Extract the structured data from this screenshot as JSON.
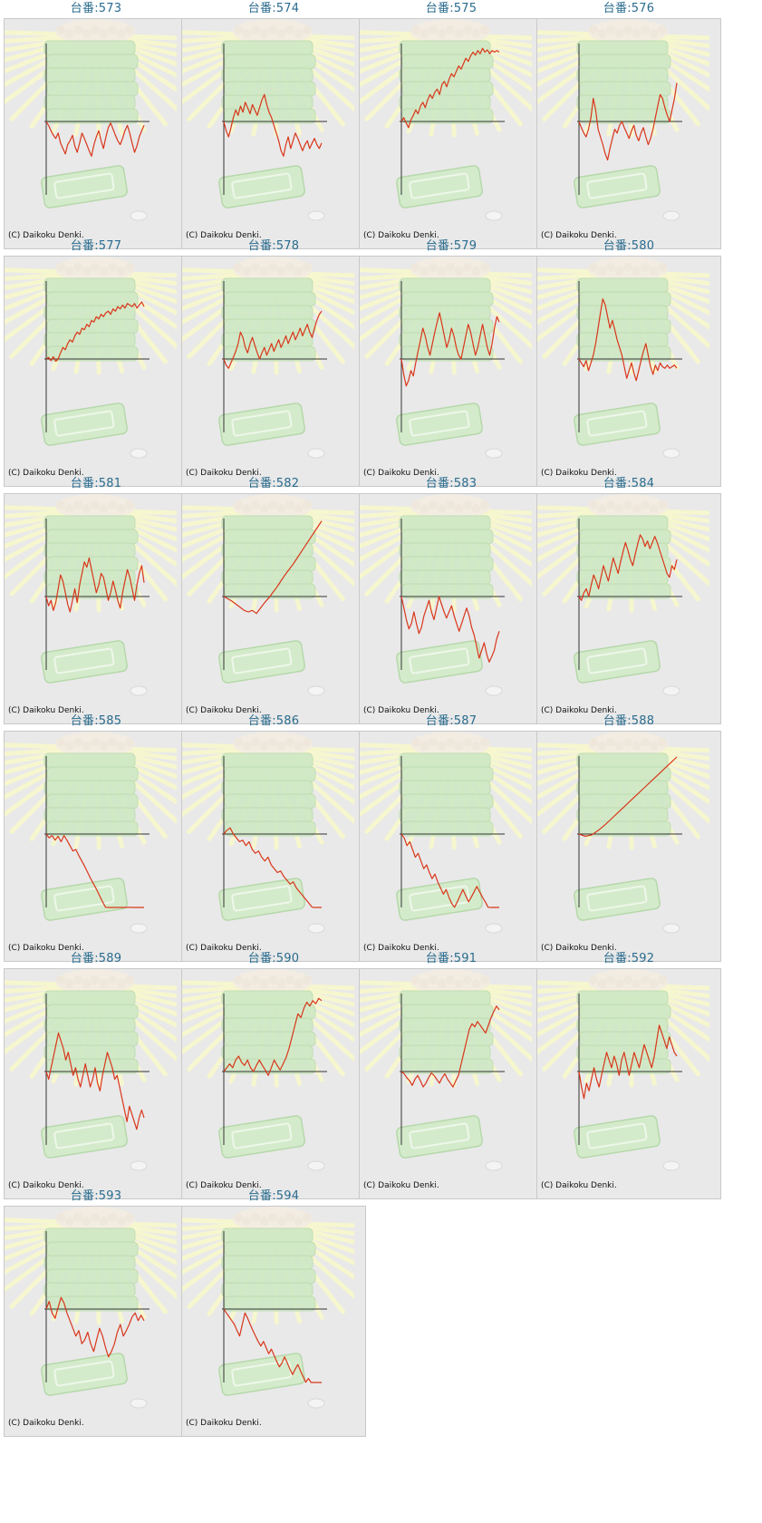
{
  "page": {
    "copyright": "(C) Daikoku Denki.",
    "colors": {
      "title": "#2a6c8e",
      "line": "#d9361a",
      "axis": "#333333",
      "card_bg": "#e9e9e9",
      "bg_art_green": "#cfe8c5",
      "bg_art_rays": "#f6f6cf"
    },
    "background_art": "pachinko-machine-illustration"
  },
  "chart_data": [
    {
      "type": "line",
      "title": "台番:573",
      "y": [
        0,
        -5,
        -12,
        -18,
        -22,
        -15,
        -28,
        -35,
        -42,
        -30,
        -25,
        -18,
        -32,
        -40,
        -28,
        -15,
        -22,
        -30,
        -38,
        -45,
        -30,
        -20,
        -12,
        -25,
        -35,
        -20,
        -8,
        -2,
        -10,
        -18,
        -25,
        -30,
        -22,
        -12,
        -5,
        -15,
        -28,
        -40,
        -32,
        -20,
        -12,
        -5
      ]
    },
    {
      "type": "line",
      "title": "台番:574",
      "y": [
        0,
        -12,
        -20,
        -8,
        5,
        15,
        8,
        20,
        12,
        25,
        18,
        10,
        22,
        15,
        8,
        18,
        28,
        35,
        22,
        12,
        5,
        -5,
        -15,
        -25,
        -38,
        -45,
        -30,
        -20,
        -35,
        -25,
        -15,
        -22,
        -30,
        -38,
        -30,
        -25,
        -35,
        -28,
        -22,
        -30,
        -35,
        -28
      ]
    },
    {
      "type": "line",
      "title": "台番:575",
      "y": [
        0,
        5,
        -2,
        -8,
        2,
        8,
        15,
        10,
        20,
        25,
        18,
        28,
        35,
        30,
        38,
        42,
        35,
        48,
        52,
        45,
        55,
        62,
        58,
        65,
        72,
        68,
        75,
        82,
        78,
        85,
        90,
        86,
        92,
        88,
        95,
        90,
        93,
        88,
        92,
        90,
        92,
        90
      ]
    },
    {
      "type": "line",
      "title": "台番:576",
      "y": [
        0,
        -8,
        -15,
        -20,
        -10,
        5,
        30,
        15,
        -10,
        -20,
        -30,
        -42,
        -50,
        -35,
        -22,
        -10,
        -15,
        -5,
        0,
        -8,
        -15,
        -22,
        -12,
        -5,
        -18,
        -25,
        -15,
        -8,
        -20,
        -30,
        -22,
        -10,
        5,
        20,
        35,
        30,
        18,
        8,
        0,
        15,
        30,
        50
      ]
    },
    {
      "type": "line",
      "title": "台番:577",
      "y": [
        0,
        2,
        -2,
        3,
        -3,
        0,
        8,
        15,
        12,
        20,
        25,
        22,
        30,
        35,
        32,
        40,
        38,
        45,
        42,
        50,
        48,
        55,
        52,
        58,
        55,
        60,
        62,
        58,
        65,
        62,
        68,
        65,
        70,
        66,
        72,
        70,
        68,
        72,
        66,
        70,
        74,
        68
      ]
    },
    {
      "type": "line",
      "title": "台番:578",
      "y": [
        0,
        -8,
        -12,
        -5,
        2,
        10,
        20,
        35,
        28,
        15,
        8,
        20,
        28,
        18,
        8,
        0,
        8,
        15,
        5,
        12,
        20,
        10,
        18,
        25,
        15,
        22,
        30,
        20,
        28,
        35,
        25,
        32,
        40,
        30,
        38,
        45,
        35,
        28,
        40,
        50,
        58,
        62
      ]
    },
    {
      "type": "line",
      "title": "台番:579",
      "y": [
        0,
        -20,
        -35,
        -28,
        -15,
        -22,
        -5,
        10,
        25,
        40,
        30,
        15,
        5,
        20,
        35,
        48,
        60,
        45,
        30,
        15,
        25,
        40,
        30,
        15,
        5,
        0,
        15,
        30,
        45,
        35,
        20,
        5,
        15,
        30,
        45,
        30,
        15,
        5,
        20,
        40,
        55,
        48
      ]
    },
    {
      "type": "line",
      "title": "台番:580",
      "y": [
        0,
        -5,
        -10,
        -2,
        -15,
        -5,
        5,
        20,
        40,
        60,
        78,
        70,
        55,
        40,
        50,
        38,
        25,
        15,
        5,
        -10,
        -25,
        -15,
        -5,
        -18,
        -28,
        -15,
        -2,
        10,
        20,
        5,
        -10,
        -20,
        -8,
        -15,
        -5,
        -10,
        -12,
        -8,
        -12,
        -10,
        -8,
        -12
      ]
    },
    {
      "type": "line",
      "title": "台番:581",
      "y": [
        0,
        -12,
        -5,
        -18,
        -8,
        10,
        28,
        20,
        5,
        -10,
        -20,
        -5,
        10,
        -8,
        15,
        30,
        45,
        38,
        50,
        35,
        20,
        5,
        15,
        30,
        25,
        10,
        -5,
        5,
        20,
        8,
        -5,
        -15,
        5,
        20,
        35,
        25,
        10,
        -5,
        15,
        30,
        40,
        18
      ]
    },
    {
      "type": "line",
      "title": "台番:582",
      "y": [
        0,
        -3,
        -6,
        -10,
        -14,
        -18,
        -20,
        -18,
        -22,
        -15,
        -8,
        -2,
        5,
        12,
        20,
        28,
        35,
        42,
        50,
        58,
        66,
        74,
        82,
        90,
        98
      ]
    },
    {
      "type": "line",
      "title": "台番:583",
      "y": [
        0,
        -15,
        -30,
        -42,
        -35,
        -20,
        -35,
        -48,
        -40,
        -25,
        -15,
        -5,
        -20,
        -30,
        -15,
        0,
        -10,
        -20,
        -28,
        -20,
        -12,
        -25,
        -35,
        -45,
        -35,
        -25,
        -15,
        -25,
        -40,
        -50,
        -65,
        -80,
        -70,
        -60,
        -75,
        -85,
        -78,
        -70,
        -55,
        -45
      ]
    },
    {
      "type": "line",
      "title": "台番:584",
      "y": [
        0,
        -5,
        5,
        10,
        0,
        15,
        28,
        20,
        10,
        25,
        40,
        30,
        20,
        35,
        50,
        40,
        30,
        45,
        58,
        70,
        60,
        48,
        40,
        55,
        68,
        80,
        75,
        65,
        72,
        62,
        70,
        78,
        70,
        60,
        50,
        40,
        30,
        25,
        40,
        35,
        48
      ]
    },
    {
      "type": "line",
      "title": "台番:585",
      "y": [
        0,
        -5,
        -2,
        -8,
        -3,
        -10,
        -2,
        -8,
        -15,
        -22,
        -20,
        -28,
        -35,
        -42,
        -50,
        -58,
        -65,
        -72,
        -80,
        -88,
        -95,
        -102,
        -110,
        -118,
        -125,
        -120,
        -110,
        -102,
        -95,
        -100,
        -108,
        -100,
        -105,
        -108
      ]
    },
    {
      "type": "line",
      "title": "台番:586",
      "y": [
        0,
        5,
        8,
        0,
        -5,
        -10,
        -8,
        -15,
        -10,
        -20,
        -25,
        -22,
        -30,
        -35,
        -30,
        -40,
        -45,
        -50,
        -48,
        -55,
        -60,
        -65,
        -62,
        -70,
        -75,
        -80,
        -85,
        -90,
        -95,
        -100,
        -108,
        -115
      ]
    },
    {
      "type": "line",
      "title": "台番:587",
      "y": [
        0,
        -5,
        -15,
        -10,
        -20,
        -30,
        -25,
        -35,
        -45,
        -40,
        -50,
        -58,
        -52,
        -62,
        -70,
        -78,
        -72,
        -82,
        -90,
        -95,
        -88,
        -80,
        -72,
        -80,
        -88,
        -82,
        -75,
        -68,
        -75,
        -82,
        -88,
        -95,
        -100,
        -108,
        -102,
        -110
      ]
    },
    {
      "type": "line",
      "title": "台番:588",
      "y": [
        0,
        -3,
        -1,
        5,
        12,
        20,
        28,
        36,
        44,
        52,
        60,
        68,
        76,
        84,
        92,
        100
      ]
    },
    {
      "type": "line",
      "title": "台番:589",
      "y": [
        0,
        -10,
        5,
        20,
        35,
        50,
        40,
        30,
        15,
        25,
        10,
        -5,
        5,
        -10,
        -20,
        -5,
        10,
        -5,
        -20,
        -10,
        5,
        -15,
        -25,
        -5,
        10,
        25,
        15,
        5,
        -10,
        -5,
        -20,
        -35,
        -50,
        -65,
        -45,
        -55,
        -65,
        -75,
        -60,
        -50,
        -60
      ]
    },
    {
      "type": "line",
      "title": "台番:590",
      "y": [
        0,
        5,
        10,
        5,
        15,
        20,
        12,
        8,
        15,
        5,
        0,
        8,
        15,
        8,
        2,
        -5,
        5,
        15,
        8,
        2,
        10,
        18,
        30,
        45,
        60,
        75,
        70,
        82,
        90,
        85,
        92,
        88,
        95,
        92
      ]
    },
    {
      "type": "line",
      "title": "台番:591",
      "y": [
        0,
        -3,
        -8,
        -12,
        -18,
        -10,
        -5,
        -12,
        -20,
        -15,
        -8,
        -2,
        -5,
        -10,
        -15,
        -8,
        -3,
        -10,
        -15,
        -20,
        -12,
        -5,
        10,
        25,
        40,
        55,
        62,
        58,
        65,
        60,
        55,
        50,
        60,
        70,
        78,
        85,
        80
      ]
    },
    {
      "type": "line",
      "title": "台番:592",
      "y": [
        0,
        -20,
        -35,
        -15,
        -25,
        -10,
        5,
        -10,
        -20,
        -5,
        10,
        25,
        15,
        5,
        20,
        10,
        -5,
        15,
        25,
        10,
        -5,
        10,
        25,
        15,
        5,
        20,
        35,
        25,
        15,
        5,
        20,
        40,
        60,
        50,
        40,
        30,
        45,
        35,
        25,
        20
      ]
    },
    {
      "type": "line",
      "title": "台番:593",
      "y": [
        0,
        10,
        -5,
        -12,
        2,
        15,
        8,
        -5,
        -15,
        -25,
        -35,
        -28,
        -45,
        -40,
        -30,
        -45,
        -55,
        -40,
        -25,
        -35,
        -50,
        -62,
        -55,
        -45,
        -30,
        -20,
        -35,
        -28,
        -20,
        -10,
        -5,
        -15,
        -8,
        -15
      ]
    },
    {
      "type": "line",
      "title": "台番:594",
      "y": [
        0,
        -5,
        -10,
        -15,
        -20,
        -28,
        -35,
        -20,
        -5,
        -12,
        -20,
        -28,
        -35,
        -42,
        -48,
        -42,
        -50,
        -58,
        -52,
        -60,
        -68,
        -75,
        -70,
        -62,
        -70,
        -78,
        -85,
        -78,
        -72,
        -80,
        -88,
        -95,
        -90,
        -98,
        -105,
        -112,
        -118,
        -125
      ]
    }
  ]
}
